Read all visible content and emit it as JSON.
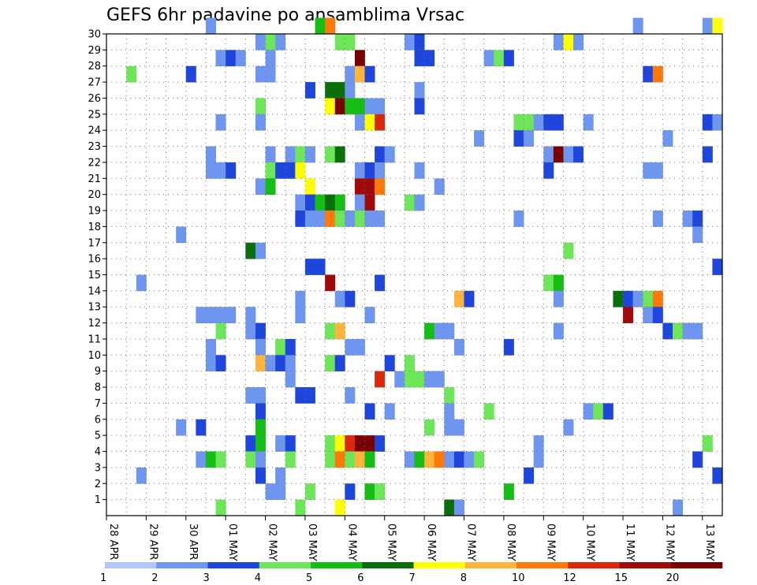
{
  "chart_data": {
    "type": "heatmap",
    "title": "GEFS 6hr padavine po ansamblima Vrsac",
    "x_tick_labels": [
      "28 APR",
      "29 APR",
      "30 APR",
      "01 MAY",
      "02 MAY",
      "03 MAY",
      "04 MAY",
      "05 MAY",
      "06 MAY",
      "07 MAY",
      "08 MAY",
      "09 MAY",
      "10 MAY",
      "11 MAY",
      "12 MAY",
      "13 MAY"
    ],
    "y_tick_labels": [
      "1",
      "2",
      "3",
      "4",
      "5",
      "6",
      "7",
      "8",
      "9",
      "10",
      "11",
      "12",
      "13",
      "14",
      "15",
      "16",
      "17",
      "18",
      "19",
      "20",
      "21",
      "22",
      "23",
      "24",
      "25",
      "26",
      "27",
      "28",
      "29",
      "30"
    ],
    "x_step_hours": 6,
    "x_range_steps": [
      0,
      61
    ],
    "y_range": [
      0,
      30
    ],
    "grid": true,
    "colorbar": {
      "labels": [
        "1",
        "2",
        "3",
        "4",
        "5",
        "6",
        "7",
        "8",
        "10",
        "12",
        "15",
        "20"
      ],
      "colors": [
        "#b4c8ff",
        "#6e96f0",
        "#1e46dc",
        "#6ee65a",
        "#14be14",
        "#0a6e0a",
        "#ffff00",
        "#ffb43c",
        "#ff780a",
        "#dc280a",
        "#a00a0a",
        "#780000"
      ]
    },
    "cells": [
      [
        30,
        10,
        1
      ],
      [
        30,
        21,
        4
      ],
      [
        30,
        22,
        8
      ],
      [
        30,
        53,
        1
      ],
      [
        30,
        60,
        1
      ],
      [
        30,
        61,
        6
      ],
      [
        29,
        15,
        1
      ],
      [
        29,
        16,
        3
      ],
      [
        29,
        17,
        1
      ],
      [
        29,
        23,
        3
      ],
      [
        29,
        24,
        3
      ],
      [
        29,
        30,
        1
      ],
      [
        29,
        31,
        2
      ],
      [
        29,
        45,
        1
      ],
      [
        29,
        46,
        6
      ],
      [
        29,
        47,
        1
      ],
      [
        28,
        11,
        1
      ],
      [
        28,
        12,
        2
      ],
      [
        28,
        13,
        1
      ],
      [
        28,
        16,
        1
      ],
      [
        28,
        25,
        11
      ],
      [
        28,
        31,
        2
      ],
      [
        28,
        32,
        2
      ],
      [
        28,
        38,
        1
      ],
      [
        28,
        39,
        3
      ],
      [
        28,
        40,
        2
      ],
      [
        27,
        2,
        3
      ],
      [
        27,
        8,
        2
      ],
      [
        27,
        15,
        1
      ],
      [
        27,
        16,
        1
      ],
      [
        27,
        24,
        1
      ],
      [
        27,
        25,
        7
      ],
      [
        27,
        26,
        2
      ],
      [
        27,
        54,
        2
      ],
      [
        27,
        55,
        8
      ],
      [
        26,
        20,
        2
      ],
      [
        26,
        22,
        5
      ],
      [
        26,
        23,
        5
      ],
      [
        26,
        24,
        1
      ],
      [
        26,
        31,
        1
      ],
      [
        25,
        15,
        3
      ],
      [
        25,
        22,
        6
      ],
      [
        25,
        23,
        11
      ],
      [
        25,
        24,
        4
      ],
      [
        25,
        25,
        4
      ],
      [
        25,
        26,
        1
      ],
      [
        25,
        27,
        1
      ],
      [
        25,
        31,
        2
      ],
      [
        24,
        11,
        1
      ],
      [
        24,
        15,
        1
      ],
      [
        24,
        25,
        1
      ],
      [
        24,
        26,
        6
      ],
      [
        24,
        27,
        9
      ],
      [
        24,
        41,
        3
      ],
      [
        24,
        42,
        3
      ],
      [
        24,
        43,
        1
      ],
      [
        24,
        44,
        2
      ],
      [
        24,
        45,
        2
      ],
      [
        24,
        48,
        1
      ],
      [
        24,
        60,
        2
      ],
      [
        24,
        61,
        1
      ],
      [
        23,
        37,
        1
      ],
      [
        23,
        41,
        2
      ],
      [
        23,
        42,
        1
      ],
      [
        23,
        56,
        1
      ],
      [
        22,
        10,
        1
      ],
      [
        22,
        16,
        1
      ],
      [
        22,
        18,
        1
      ],
      [
        22,
        19,
        3
      ],
      [
        22,
        20,
        1
      ],
      [
        22,
        22,
        3
      ],
      [
        22,
        23,
        5
      ],
      [
        22,
        27,
        2
      ],
      [
        22,
        28,
        1
      ],
      [
        22,
        44,
        1
      ],
      [
        22,
        45,
        11
      ],
      [
        22,
        46,
        1
      ],
      [
        22,
        47,
        2
      ],
      [
        22,
        60,
        2
      ],
      [
        21,
        10,
        1
      ],
      [
        21,
        11,
        1
      ],
      [
        21,
        12,
        2
      ],
      [
        21,
        16,
        3
      ],
      [
        21,
        17,
        2
      ],
      [
        21,
        18,
        2
      ],
      [
        21,
        19,
        6
      ],
      [
        21,
        25,
        1
      ],
      [
        21,
        26,
        2
      ],
      [
        21,
        27,
        1
      ],
      [
        21,
        31,
        1
      ],
      [
        21,
        44,
        2
      ],
      [
        21,
        54,
        1
      ],
      [
        21,
        55,
        1
      ],
      [
        20,
        15,
        1
      ],
      [
        20,
        16,
        4
      ],
      [
        20,
        20,
        6
      ],
      [
        20,
        25,
        10
      ],
      [
        20,
        26,
        10
      ],
      [
        20,
        27,
        8
      ],
      [
        20,
        33,
        1
      ],
      [
        19,
        19,
        1
      ],
      [
        19,
        20,
        2
      ],
      [
        19,
        21,
        4
      ],
      [
        19,
        22,
        5
      ],
      [
        19,
        23,
        4
      ],
      [
        19,
        25,
        1
      ],
      [
        19,
        26,
        10
      ],
      [
        19,
        30,
        3
      ],
      [
        19,
        31,
        1
      ],
      [
        18,
        19,
        2
      ],
      [
        18,
        20,
        1
      ],
      [
        18,
        21,
        1
      ],
      [
        18,
        22,
        8
      ],
      [
        18,
        23,
        3
      ],
      [
        18,
        24,
        1
      ],
      [
        18,
        25,
        3
      ],
      [
        18,
        26,
        1
      ],
      [
        18,
        27,
        1
      ],
      [
        18,
        41,
        1
      ],
      [
        18,
        55,
        1
      ],
      [
        18,
        58,
        1
      ],
      [
        18,
        59,
        2
      ],
      [
        17,
        7,
        1
      ],
      [
        17,
        59,
        1
      ],
      [
        16,
        14,
        5
      ],
      [
        16,
        15,
        1
      ],
      [
        16,
        46,
        3
      ],
      [
        15,
        20,
        2
      ],
      [
        15,
        21,
        2
      ],
      [
        15,
        61,
        2
      ],
      [
        14,
        3,
        1
      ],
      [
        14,
        22,
        10
      ],
      [
        14,
        27,
        2
      ],
      [
        14,
        44,
        3
      ],
      [
        14,
        45,
        4
      ],
      [
        13,
        19,
        1
      ],
      [
        13,
        23,
        1
      ],
      [
        13,
        24,
        2
      ],
      [
        13,
        35,
        7
      ],
      [
        13,
        36,
        2
      ],
      [
        13,
        45,
        1
      ],
      [
        13,
        51,
        5
      ],
      [
        13,
        52,
        2
      ],
      [
        13,
        53,
        1
      ],
      [
        13,
        54,
        3
      ],
      [
        13,
        55,
        8
      ],
      [
        12,
        9,
        1
      ],
      [
        12,
        10,
        1
      ],
      [
        12,
        11,
        1
      ],
      [
        12,
        12,
        1
      ],
      [
        12,
        14,
        1
      ],
      [
        12,
        19,
        1
      ],
      [
        12,
        26,
        1
      ],
      [
        12,
        52,
        10
      ],
      [
        12,
        54,
        1
      ],
      [
        12,
        55,
        2
      ],
      [
        11,
        11,
        3
      ],
      [
        11,
        14,
        1
      ],
      [
        11,
        15,
        2
      ],
      [
        11,
        22,
        3
      ],
      [
        11,
        23,
        7
      ],
      [
        11,
        32,
        4
      ],
      [
        11,
        33,
        1
      ],
      [
        11,
        34,
        1
      ],
      [
        11,
        45,
        1
      ],
      [
        11,
        56,
        2
      ],
      [
        11,
        57,
        3
      ],
      [
        11,
        58,
        1
      ],
      [
        11,
        59,
        1
      ],
      [
        10,
        10,
        1
      ],
      [
        10,
        15,
        1
      ],
      [
        10,
        17,
        3
      ],
      [
        10,
        18,
        2
      ],
      [
        10,
        24,
        1
      ],
      [
        10,
        25,
        1
      ],
      [
        10,
        35,
        1
      ],
      [
        10,
        40,
        2
      ],
      [
        9,
        10,
        1
      ],
      [
        9,
        11,
        2
      ],
      [
        9,
        15,
        7
      ],
      [
        9,
        16,
        1
      ],
      [
        9,
        17,
        2
      ],
      [
        9,
        18,
        1
      ],
      [
        9,
        22,
        3
      ],
      [
        9,
        23,
        2
      ],
      [
        9,
        28,
        2
      ],
      [
        9,
        30,
        3
      ],
      [
        8,
        18,
        1
      ],
      [
        8,
        27,
        9
      ],
      [
        8,
        29,
        1
      ],
      [
        8,
        30,
        3
      ],
      [
        8,
        31,
        3
      ],
      [
        8,
        32,
        1
      ],
      [
        8,
        33,
        1
      ],
      [
        7,
        14,
        1
      ],
      [
        7,
        15,
        1
      ],
      [
        7,
        19,
        2
      ],
      [
        7,
        20,
        2
      ],
      [
        7,
        24,
        1
      ],
      [
        7,
        34,
        3
      ],
      [
        6,
        15,
        2
      ],
      [
        6,
        26,
        2
      ],
      [
        6,
        28,
        1
      ],
      [
        6,
        34,
        1
      ],
      [
        6,
        38,
        3
      ],
      [
        6,
        48,
        1
      ],
      [
        6,
        49,
        3
      ],
      [
        6,
        50,
        2
      ],
      [
        5,
        7,
        1
      ],
      [
        5,
        9,
        2
      ],
      [
        5,
        15,
        4
      ],
      [
        5,
        32,
        3
      ],
      [
        5,
        34,
        1
      ],
      [
        5,
        35,
        1
      ],
      [
        5,
        46,
        1
      ],
      [
        4,
        14,
        2
      ],
      [
        4,
        15,
        4
      ],
      [
        4,
        17,
        1
      ],
      [
        4,
        18,
        2
      ],
      [
        4,
        22,
        3
      ],
      [
        4,
        23,
        6
      ],
      [
        4,
        24,
        9
      ],
      [
        4,
        25,
        11
      ],
      [
        4,
        26,
        11
      ],
      [
        4,
        27,
        2
      ],
      [
        4,
        43,
        1
      ],
      [
        4,
        60,
        3
      ],
      [
        3,
        9,
        1
      ],
      [
        3,
        10,
        4
      ],
      [
        3,
        11,
        3
      ],
      [
        3,
        14,
        3
      ],
      [
        3,
        15,
        1
      ],
      [
        3,
        18,
        3
      ],
      [
        3,
        22,
        3
      ],
      [
        3,
        23,
        8
      ],
      [
        3,
        24,
        3
      ],
      [
        3,
        25,
        7
      ],
      [
        3,
        26,
        4
      ],
      [
        3,
        30,
        1
      ],
      [
        3,
        31,
        4
      ],
      [
        3,
        32,
        7
      ],
      [
        3,
        33,
        8
      ],
      [
        3,
        34,
        1
      ],
      [
        3,
        35,
        2
      ],
      [
        3,
        36,
        1
      ],
      [
        3,
        37,
        3
      ],
      [
        3,
        43,
        1
      ],
      [
        3,
        59,
        2
      ],
      [
        2,
        3,
        1
      ],
      [
        2,
        15,
        2
      ],
      [
        2,
        17,
        1
      ],
      [
        2,
        42,
        2
      ],
      [
        2,
        61,
        2
      ],
      [
        1,
        16,
        1
      ],
      [
        1,
        17,
        1
      ],
      [
        1,
        20,
        3
      ],
      [
        1,
        24,
        2
      ],
      [
        1,
        26,
        4
      ],
      [
        1,
        27,
        3
      ],
      [
        1,
        40,
        4
      ],
      [
        0,
        11,
        3
      ],
      [
        0,
        19,
        3
      ],
      [
        0,
        23,
        6
      ],
      [
        0,
        34,
        5
      ],
      [
        0,
        35,
        1
      ],
      [
        0,
        57,
        1
      ]
    ]
  }
}
